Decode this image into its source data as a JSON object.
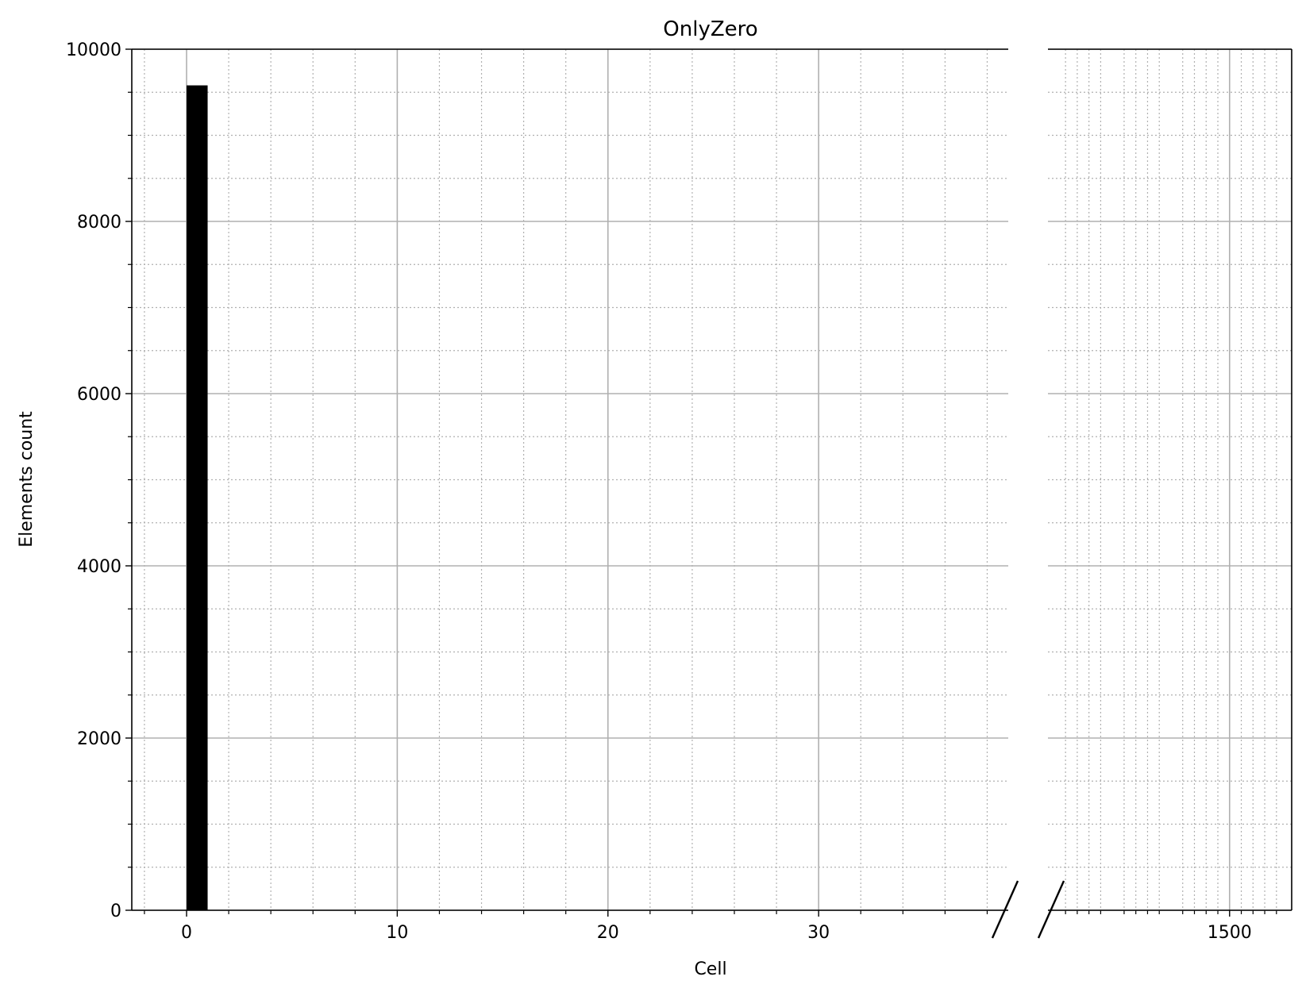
{
  "chart_data": {
    "type": "bar",
    "title": "OnlyZero",
    "xlabel": "Cell",
    "ylabel": "Elements count",
    "ylim": [
      0,
      10000
    ],
    "y_ticks": [
      0,
      2000,
      4000,
      6000,
      8000,
      10000
    ],
    "broken_x_axis": true,
    "left_panel": {
      "xlim": [
        -2.6,
        39.0
      ],
      "x_ticks": [
        0,
        10,
        20,
        30
      ]
    },
    "right_panel": {
      "xlim": [
        1469.0,
        1510.6
      ],
      "x_ticks": [
        1500
      ]
    },
    "grid": "major solid, minor dotted",
    "bars": [
      {
        "x0": 0,
        "x1": 1,
        "value": 9580
      }
    ],
    "colors": {
      "bar": "#000000",
      "major_grid": "#b0b0b0",
      "minor_grid": "#b0b0b0"
    }
  }
}
